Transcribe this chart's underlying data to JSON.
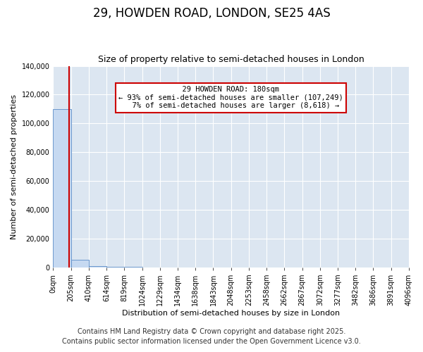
{
  "title": "29, HOWDEN ROAD, LONDON, SE25 4AS",
  "subtitle": "Size of property relative to semi-detached houses in London",
  "xlabel": "Distribution of semi-detached houses by size in London",
  "ylabel": "Number of semi-detached properties",
  "property_size_sqm": 180,
  "property_label": "29 HOWDEN ROAD: 180sqm",
  "pct_smaller": 93,
  "count_smaller": 107249,
  "pct_larger": 7,
  "count_larger": 8618,
  "annotation_box_color": "#ffffff",
  "annotation_box_edge": "#cc0000",
  "bar_color": "#c6d9f1",
  "bar_edge_color": "#5b8cc8",
  "vline_color": "#cc0000",
  "background_color": "#dce6f1",
  "fig_background": "#ffffff",
  "ylim": [
    0,
    140000
  ],
  "yticks": [
    0,
    20000,
    40000,
    60000,
    80000,
    100000,
    120000,
    140000
  ],
  "bin_edges": [
    0,
    205,
    410,
    614,
    819,
    1024,
    1229,
    1434,
    1638,
    1843,
    2048,
    2253,
    2458,
    2662,
    2867,
    3072,
    3277,
    3482,
    3686,
    3891,
    4096
  ],
  "bin_labels": [
    "0sqm",
    "205sqm",
    "410sqm",
    "614sqm",
    "819sqm",
    "1024sqm",
    "1229sqm",
    "1434sqm",
    "1638sqm",
    "1843sqm",
    "2048sqm",
    "2253sqm",
    "2458sqm",
    "2662sqm",
    "2867sqm",
    "3072sqm",
    "3277sqm",
    "3482sqm",
    "3686sqm",
    "3891sqm",
    "4096sqm"
  ],
  "bar_heights": [
    110000,
    5500,
    800,
    300,
    150,
    80,
    50,
    35,
    25,
    18,
    14,
    10,
    8,
    6,
    5,
    4,
    3,
    3,
    2,
    2
  ],
  "footer1": "Contains HM Land Registry data © Crown copyright and database right 2025.",
  "footer2": "Contains public sector information licensed under the Open Government Licence v3.0.",
  "grid_color": "#ffffff",
  "title_fontsize": 12,
  "subtitle_fontsize": 9,
  "axis_label_fontsize": 8,
  "tick_fontsize": 7,
  "footer_fontsize": 7,
  "annotation_fontsize": 7.5
}
